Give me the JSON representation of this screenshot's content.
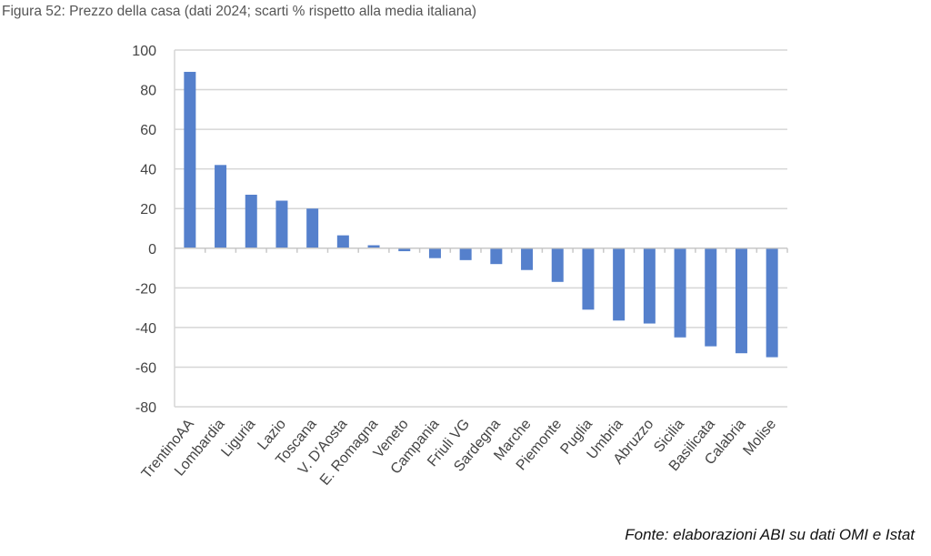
{
  "chart_data": {
    "type": "bar",
    "title": "Figura 52: Prezzo della casa (dati 2024; scarti % rispetto alla media italiana)",
    "source": "Fonte: elaborazioni ABI su dati OMI e Istat",
    "categories": [
      "TrentinoAA",
      "Lombardia",
      "Liguria",
      "Lazio",
      "Toscana",
      "V. D'Aosta",
      "E. Romagna",
      "Veneto",
      "Campania",
      "Friuli VG",
      "Sardegna",
      "Marche",
      "Piemonte",
      "Puglia",
      "Umbria",
      "Abruzzo",
      "Sicilia",
      "Basilicata",
      "Calabria",
      "Molise"
    ],
    "values": [
      89,
      42,
      27,
      24,
      20,
      6.5,
      1.5,
      -1.5,
      -5,
      -6,
      -8,
      -11,
      -17,
      -31,
      -36.5,
      -38,
      -45,
      -49.5,
      -53,
      -55
    ],
    "xlabel": "",
    "ylabel": "",
    "ylim": [
      -80,
      100
    ],
    "yticks": [
      100,
      80,
      60,
      40,
      20,
      0,
      -20,
      -40,
      -60,
      -80
    ],
    "grid": true,
    "legend": "none",
    "bar_color": "#5580cc"
  }
}
